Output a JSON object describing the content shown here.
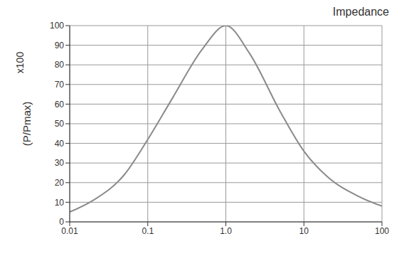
{
  "chart_data": {
    "type": "line",
    "title": "Impedance",
    "ylabel": "(P/Pmax)",
    "annotations": [
      "x100"
    ],
    "x": [
      0.01,
      0.02,
      0.05,
      0.1,
      0.2,
      0.5,
      1,
      2,
      5,
      10,
      20,
      50,
      100
    ],
    "values": [
      5,
      11,
      24,
      42,
      62,
      88,
      100,
      86,
      56,
      36,
      23,
      13,
      8
    ],
    "color": "#8a8a8a",
    "log": "x",
    "xlim": [
      0.01,
      100
    ],
    "xticks": [
      0.01,
      0.1,
      {
        "value": 1,
        "label": "1.0"
      },
      10,
      100
    ],
    "ylim": [
      0,
      100
    ],
    "yticks": [
      0,
      10,
      20,
      30,
      40,
      50,
      60,
      70,
      80,
      90,
      100
    ],
    "grid": true
  }
}
